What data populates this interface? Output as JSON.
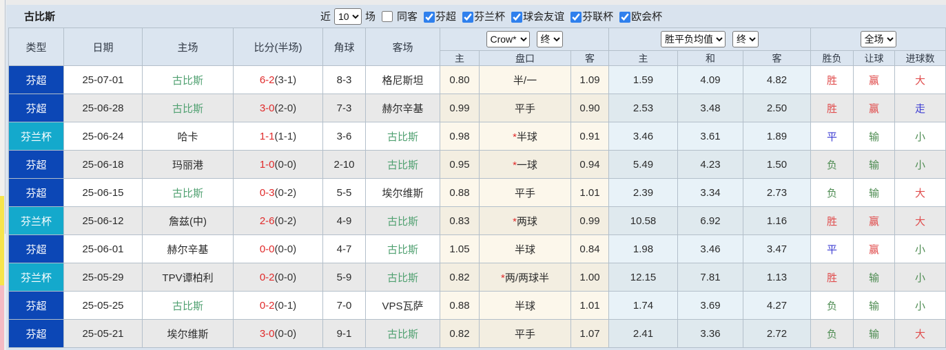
{
  "topbar": {
    "title": "古比斯",
    "near_label": "近",
    "matches_value": "10",
    "matches_label": "场",
    "same_away": {
      "label": "同客",
      "checked": false
    },
    "league_filters": [
      {
        "label": "芬超",
        "checked": true
      },
      {
        "label": "芬兰杯",
        "checked": true
      },
      {
        "label": "球会友谊",
        "checked": true
      },
      {
        "label": "芬联杯",
        "checked": true
      },
      {
        "label": "欧会杯",
        "checked": true
      }
    ]
  },
  "colors": {
    "league_blue": "#0c47b6",
    "league_cyan": "#14a9cc",
    "team_highlight": "#4fa070",
    "score_red": "#e02a2a",
    "result_red": "#e04c4c",
    "result_green": "#4e8c52",
    "result_blue": "#3c3cd2",
    "odds_bg": "#fcf7eb",
    "avg_bg": "#e8f2f8"
  },
  "table": {
    "headers": {
      "type": "类型",
      "date": "日期",
      "home": "主场",
      "score": "比分(半场)",
      "corners": "角球",
      "away": "客场",
      "odds_company_select": "Crow*",
      "odds_final_select": "终",
      "avg_select": "胜平负均值",
      "avg_final_select": "终",
      "fulltime_select": "全场",
      "sub": {
        "odds_home": "主",
        "handicap": "盘口",
        "odds_away": "客",
        "avg_home": "主",
        "avg_draw": "和",
        "avg_away": "客",
        "result": "胜负",
        "handicap_result": "让球",
        "goals": "进球数"
      }
    },
    "rows": [
      {
        "type": "芬超",
        "type_style": "blue",
        "date": "25-07-01",
        "home": "古比斯",
        "home_highlight": true,
        "score_ft": "6-2",
        "score_ht": "(3-1)",
        "corners": "8-3",
        "away": "格尼斯坦",
        "away_highlight": false,
        "odds_home": "0.80",
        "handicap_star": false,
        "handicap": "半/一",
        "odds_away": "1.09",
        "avg_home": "1.59",
        "avg_draw": "4.09",
        "avg_away": "4.82",
        "result": {
          "text": "胜",
          "color": "red"
        },
        "handicap_result": {
          "text": "赢",
          "color": "red"
        },
        "goals": {
          "text": "大",
          "color": "red"
        }
      },
      {
        "type": "芬超",
        "type_style": "blue",
        "date": "25-06-28",
        "home": "古比斯",
        "home_highlight": true,
        "score_ft": "3-0",
        "score_ht": "(2-0)",
        "corners": "7-3",
        "away": "赫尔辛基",
        "away_highlight": false,
        "odds_home": "0.99",
        "handicap_star": false,
        "handicap": "平手",
        "odds_away": "0.90",
        "avg_home": "2.53",
        "avg_draw": "3.48",
        "avg_away": "2.50",
        "result": {
          "text": "胜",
          "color": "red"
        },
        "handicap_result": {
          "text": "赢",
          "color": "red"
        },
        "goals": {
          "text": "走",
          "color": "blue"
        }
      },
      {
        "type": "芬兰杯",
        "type_style": "cyan",
        "date": "25-06-24",
        "home": "哈卡",
        "home_highlight": false,
        "score_ft": "1-1",
        "score_ht": "(1-1)",
        "corners": "3-6",
        "away": "古比斯",
        "away_highlight": true,
        "odds_home": "0.98",
        "handicap_star": true,
        "handicap": "半球",
        "odds_away": "0.91",
        "avg_home": "3.46",
        "avg_draw": "3.61",
        "avg_away": "1.89",
        "result": {
          "text": "平",
          "color": "blue"
        },
        "handicap_result": {
          "text": "输",
          "color": "green"
        },
        "goals": {
          "text": "小",
          "color": "green"
        }
      },
      {
        "type": "芬超",
        "type_style": "blue",
        "date": "25-06-18",
        "home": "玛丽港",
        "home_highlight": false,
        "score_ft": "1-0",
        "score_ht": "(0-0)",
        "corners": "2-10",
        "away": "古比斯",
        "away_highlight": true,
        "odds_home": "0.95",
        "handicap_star": true,
        "handicap": "一球",
        "odds_away": "0.94",
        "avg_home": "5.49",
        "avg_draw": "4.23",
        "avg_away": "1.50",
        "result": {
          "text": "负",
          "color": "green"
        },
        "handicap_result": {
          "text": "输",
          "color": "green"
        },
        "goals": {
          "text": "小",
          "color": "green"
        }
      },
      {
        "type": "芬超",
        "type_style": "blue",
        "date": "25-06-15",
        "home": "古比斯",
        "home_highlight": true,
        "score_ft": "0-3",
        "score_ht": "(0-2)",
        "corners": "5-5",
        "away": "埃尔维斯",
        "away_highlight": false,
        "odds_home": "0.88",
        "handicap_star": false,
        "handicap": "平手",
        "odds_away": "1.01",
        "avg_home": "2.39",
        "avg_draw": "3.34",
        "avg_away": "2.73",
        "result": {
          "text": "负",
          "color": "green"
        },
        "handicap_result": {
          "text": "输",
          "color": "green"
        },
        "goals": {
          "text": "大",
          "color": "red"
        }
      },
      {
        "type": "芬兰杯",
        "type_style": "cyan",
        "date": "25-06-12",
        "home": "詹兹(中)",
        "home_highlight": false,
        "score_ft": "2-6",
        "score_ht": "(0-2)",
        "corners": "4-9",
        "away": "古比斯",
        "away_highlight": true,
        "odds_home": "0.83",
        "handicap_star": true,
        "handicap": "两球",
        "odds_away": "0.99",
        "avg_home": "10.58",
        "avg_draw": "6.92",
        "avg_away": "1.16",
        "result": {
          "text": "胜",
          "color": "red"
        },
        "handicap_result": {
          "text": "赢",
          "color": "red"
        },
        "goals": {
          "text": "大",
          "color": "red"
        }
      },
      {
        "type": "芬超",
        "type_style": "blue",
        "date": "25-06-01",
        "home": "赫尔辛基",
        "home_highlight": false,
        "score_ft": "0-0",
        "score_ht": "(0-0)",
        "corners": "4-7",
        "away": "古比斯",
        "away_highlight": true,
        "odds_home": "1.05",
        "handicap_star": false,
        "handicap": "半球",
        "odds_away": "0.84",
        "avg_home": "1.98",
        "avg_draw": "3.46",
        "avg_away": "3.47",
        "result": {
          "text": "平",
          "color": "blue"
        },
        "handicap_result": {
          "text": "赢",
          "color": "red"
        },
        "goals": {
          "text": "小",
          "color": "green"
        }
      },
      {
        "type": "芬兰杯",
        "type_style": "cyan",
        "date": "25-05-29",
        "home": "TPV谭柏利",
        "home_highlight": false,
        "score_ft": "0-2",
        "score_ht": "(0-0)",
        "corners": "5-9",
        "away": "古比斯",
        "away_highlight": true,
        "odds_home": "0.82",
        "handicap_star": true,
        "handicap": "两/两球半",
        "odds_away": "1.00",
        "avg_home": "12.15",
        "avg_draw": "7.81",
        "avg_away": "1.13",
        "result": {
          "text": "胜",
          "color": "red"
        },
        "handicap_result": {
          "text": "输",
          "color": "green"
        },
        "goals": {
          "text": "小",
          "color": "green"
        }
      },
      {
        "type": "芬超",
        "type_style": "blue",
        "date": "25-05-25",
        "home": "古比斯",
        "home_highlight": true,
        "score_ft": "0-2",
        "score_ht": "(0-1)",
        "corners": "7-0",
        "away": "VPS瓦萨",
        "away_highlight": false,
        "odds_home": "0.88",
        "handicap_star": false,
        "handicap": "半球",
        "odds_away": "1.01",
        "avg_home": "1.74",
        "avg_draw": "3.69",
        "avg_away": "4.27",
        "result": {
          "text": "负",
          "color": "green"
        },
        "handicap_result": {
          "text": "输",
          "color": "green"
        },
        "goals": {
          "text": "小",
          "color": "green"
        }
      },
      {
        "type": "芬超",
        "type_style": "blue",
        "date": "25-05-21",
        "home": "埃尔维斯",
        "home_highlight": false,
        "score_ft": "3-0",
        "score_ht": "(0-0)",
        "corners": "9-1",
        "away": "古比斯",
        "away_highlight": true,
        "odds_home": "0.82",
        "handicap_star": false,
        "handicap": "平手",
        "odds_away": "1.07",
        "avg_home": "2.41",
        "avg_draw": "3.36",
        "avg_away": "2.72",
        "result": {
          "text": "负",
          "color": "green"
        },
        "handicap_result": {
          "text": "输",
          "color": "green"
        },
        "goals": {
          "text": "大",
          "color": "red"
        }
      }
    ]
  }
}
